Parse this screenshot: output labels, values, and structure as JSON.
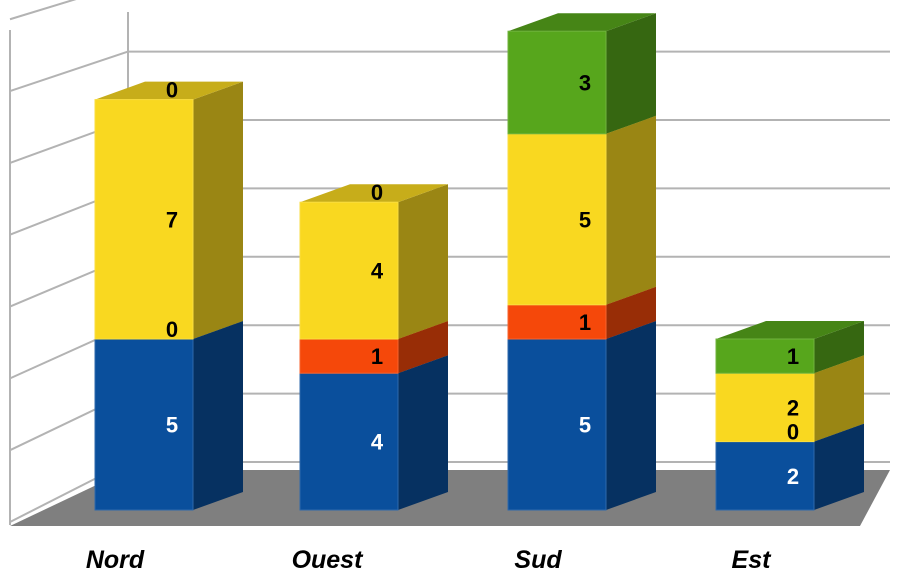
{
  "chart_data": {
    "type": "bar",
    "stacked": true,
    "three_d": true,
    "grid": true,
    "legend": "none",
    "categories": [
      "Nord",
      "Ouest",
      "Sud",
      "Est"
    ],
    "ylim": [
      0,
      14
    ],
    "series": [
      {
        "values": [
          5,
          4,
          5,
          2
        ],
        "color": "#0a4f9c",
        "label_color": "#ffffff"
      },
      {
        "values": [
          0,
          1,
          1,
          0
        ],
        "color": "#f5480a",
        "label_color": "#000000"
      },
      {
        "values": [
          7,
          4,
          5,
          2
        ],
        "color": "#f9d820",
        "label_color": "#000000"
      },
      {
        "values": [
          0,
          0,
          3,
          1
        ],
        "color": "#57a61c",
        "label_color": "#000000"
      }
    ],
    "floor_color": "#7f7f7f",
    "grid_color": "#b3b3b3"
  }
}
